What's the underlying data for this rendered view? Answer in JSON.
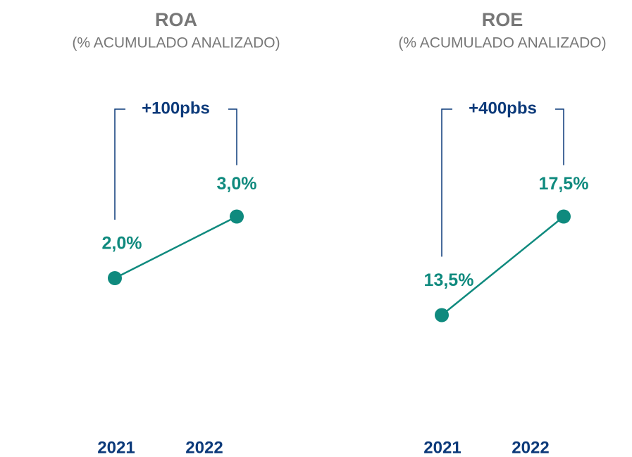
{
  "chart_data": [
    {
      "type": "line",
      "title": "ROA",
      "subtitle": "(% ACUMULADO ANALIZADO)",
      "annotation": "+100pbs",
      "categories": [
        "2021",
        "2022"
      ],
      "values": [
        2.0,
        3.0
      ],
      "value_labels": [
        "2,0%",
        "3,0%"
      ],
      "color": "#0f8a7e",
      "ylim": [
        0,
        4
      ]
    },
    {
      "type": "line",
      "title": "ROE",
      "subtitle": "(% ACUMULADO ANALIZADO)",
      "annotation": "+400pbs",
      "categories": [
        "2021",
        "2022"
      ],
      "values": [
        13.5,
        17.5
      ],
      "value_labels": [
        "13,5%",
        "17,5%"
      ],
      "color": "#0f8a7e",
      "ylim": [
        10,
        20
      ]
    }
  ]
}
